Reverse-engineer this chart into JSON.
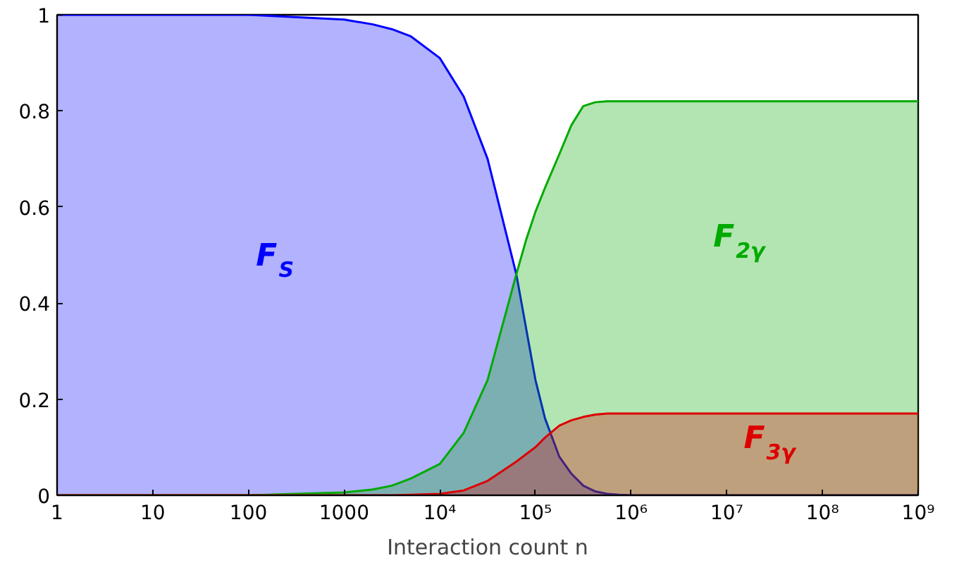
{
  "chart_data": {
    "type": "area",
    "xlabel": "Interaction count n",
    "log": "x",
    "x": [
      1,
      10,
      100,
      1000,
      2000,
      3162,
      5000,
      10000,
      17783,
      31623,
      44668,
      63096,
      79433,
      100000,
      125893,
      177828,
      237137,
      316228,
      421697,
      562341,
      749894,
      1000000,
      10000000,
      100000000,
      1000000000
    ],
    "xlim": [
      1,
      1000000000
    ],
    "xticks": [
      1,
      10,
      100,
      1000,
      {
        "value": 10000,
        "label": "10⁴"
      },
      {
        "value": 100000,
        "label": "10⁵"
      },
      {
        "value": 1000000,
        "label": "10⁶"
      },
      {
        "value": 10000000,
        "label": "10⁷"
      },
      {
        "value": 100000000,
        "label": "10⁸"
      },
      {
        "value": 1000000000,
        "label": "10⁹"
      }
    ],
    "ylim": [
      0,
      1
    ],
    "yticks": [
      0,
      0.2,
      0.4,
      0.6,
      0.8,
      1
    ],
    "grid": false,
    "series": [
      {
        "name": "F$_{S}$",
        "color": "#0000ff",
        "values": [
          1,
          1,
          1,
          0.99,
          0.98,
          0.97,
          0.955,
          0.91,
          0.83,
          0.7,
          0.58,
          0.46,
          0.35,
          0.24,
          0.16,
          0.08,
          0.045,
          0.02,
          0.008,
          0.003,
          0.001,
          0,
          0,
          0,
          0
        ]
      },
      {
        "name": "F$_{2γ}$",
        "color": "#00aa00",
        "values": [
          0,
          0,
          0,
          0.006,
          0.012,
          0.02,
          0.035,
          0.065,
          0.13,
          0.24,
          0.35,
          0.46,
          0.53,
          0.59,
          0.64,
          0.71,
          0.77,
          0.81,
          0.818,
          0.82,
          0.82,
          0.82,
          0.82,
          0.82,
          0.82
        ]
      },
      {
        "name": "F$_{3γ}$",
        "color": "#dd0000",
        "values": [
          0,
          0,
          0,
          0,
          0,
          0,
          0.001,
          0.003,
          0.01,
          0.03,
          0.05,
          0.07,
          0.085,
          0.1,
          0.12,
          0.145,
          0.156,
          0.163,
          0.168,
          0.17,
          0.17,
          0.17,
          0.17,
          0.17,
          0.17
        ]
      }
    ]
  }
}
